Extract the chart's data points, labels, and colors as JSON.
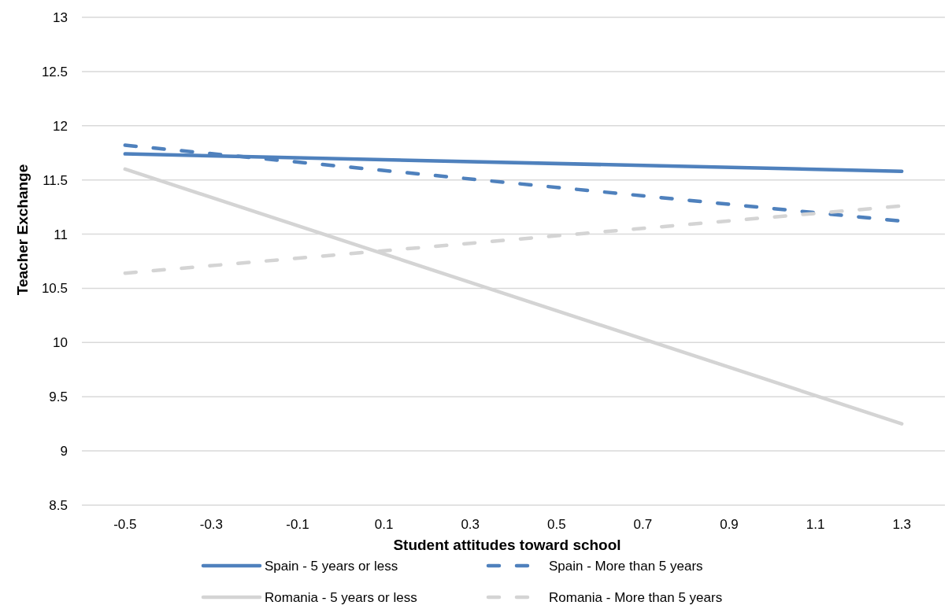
{
  "chart_data": {
    "type": "line",
    "xlabel": "Student attitudes toward school",
    "ylabel": "Teacher Exchange",
    "x": [
      -0.5,
      1.3
    ],
    "xlim": [
      -0.6,
      1.4
    ],
    "xticks": [
      -0.5,
      -0.3,
      -0.1,
      0.1,
      0.3,
      0.5,
      0.7,
      0.9,
      1.1,
      1.3
    ],
    "ylim": [
      8.5,
      13
    ],
    "yticks": [
      8.5,
      9,
      9.5,
      10,
      10.5,
      11,
      11.5,
      12,
      12.5,
      13
    ],
    "grid": "y",
    "legend": "bottom",
    "marker": "none",
    "series": [
      {
        "name": "Spain - 5 years or less",
        "color": "#4f81bd",
        "line_style": "solid",
        "values": [
          11.74,
          11.58
        ]
      },
      {
        "name": "Spain - More than 5 years",
        "color": "#4f81bd",
        "line_style": "dashed",
        "values": [
          11.82,
          11.12
        ]
      },
      {
        "name": "Romania - 5 years or less",
        "color": "#d4d4d4",
        "line_style": "solid",
        "values": [
          11.6,
          9.25
        ]
      },
      {
        "name": "Romania - More than 5 years",
        "color": "#d4d4d4",
        "line_style": "dashed",
        "values": [
          10.64,
          11.26
        ]
      }
    ]
  }
}
